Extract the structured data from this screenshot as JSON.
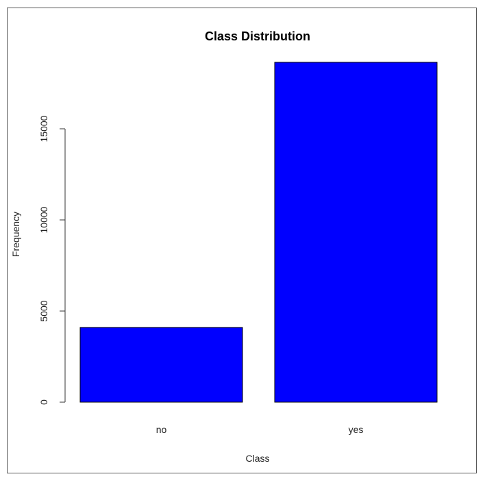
{
  "chart_data": {
    "type": "bar",
    "title": "Class Distribution",
    "xlabel": "Class",
    "ylabel": "Frequency",
    "categories": [
      "no",
      "yes"
    ],
    "values": [
      4100,
      18650
    ],
    "ylim": [
      0,
      19000
    ],
    "y_ticks": [
      0,
      5000,
      10000,
      15000
    ],
    "grid": false,
    "bar_color": "#0000ff",
    "bar_border_color": "#000000"
  }
}
